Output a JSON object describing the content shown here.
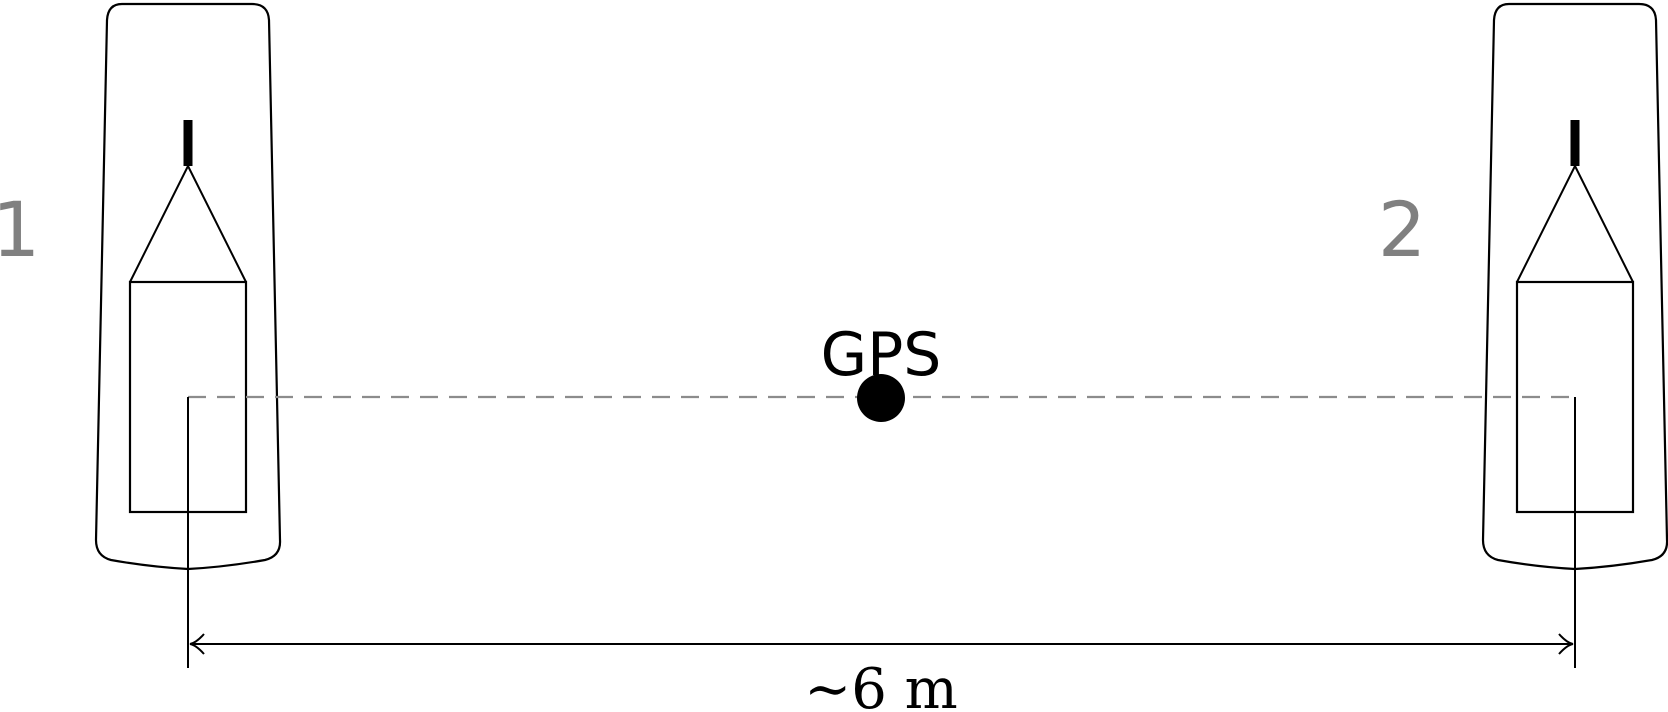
{
  "diagram": {
    "boat_labels": [
      "1",
      "2"
    ],
    "gps_label": "GPS",
    "distance_label": "∼6 m",
    "colors": {
      "line": "#000000",
      "label_gray": "#808080",
      "dash_gray": "#8c8c8c",
      "gps_dot": "#000000"
    }
  }
}
